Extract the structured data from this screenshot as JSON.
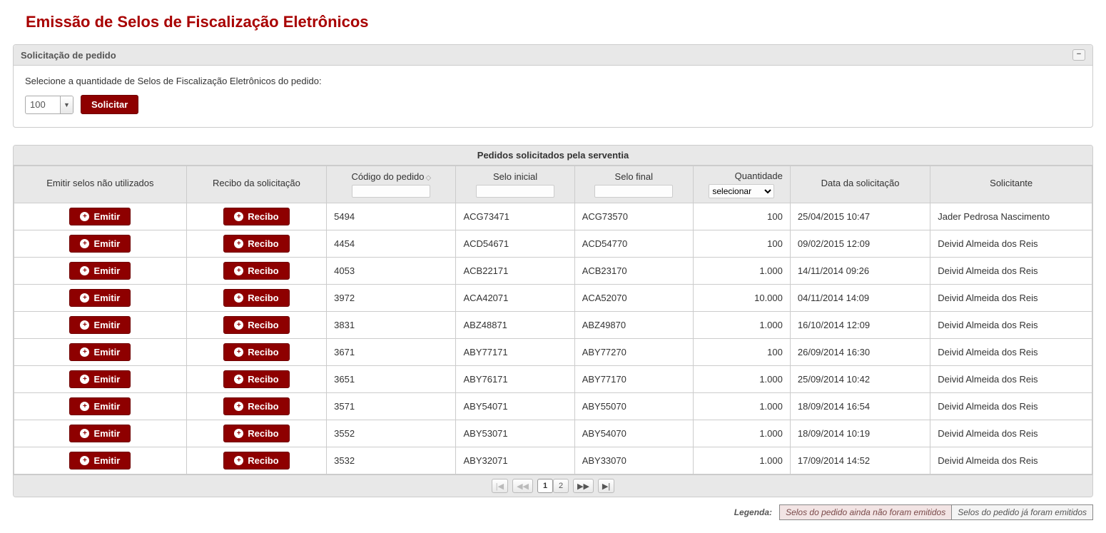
{
  "page": {
    "title": "Emissão de Selos de Fiscalização Eletrônicos"
  },
  "request_panel": {
    "header": "Solicitação de pedido",
    "label": "Selecione a quantidade de Selos de Fiscalização Eletrônicos do pedido:",
    "quantity_value": "100",
    "submit": "Solicitar"
  },
  "grid": {
    "title": "Pedidos solicitados pela serventia",
    "columns": {
      "emitir": "Emitir selos não utilizados",
      "recibo": "Recibo da solicitação",
      "codigo": "Código do pedido",
      "selo_inicial": "Selo inicial",
      "selo_final": "Selo final",
      "quantidade": "Quantidade",
      "quantidade_select": "selecionar",
      "data": "Data da solicitação",
      "solicitante": "Solicitante"
    },
    "buttons": {
      "emitir": "Emitir",
      "recibo": "Recibo"
    },
    "rows": [
      {
        "codigo": "5494",
        "selo_inicial": "ACG73471",
        "selo_final": "ACG73570",
        "quantidade": "100",
        "data": "25/04/2015 10:47",
        "solicitante": "Jader Pedrosa Nascimento"
      },
      {
        "codigo": "4454",
        "selo_inicial": "ACD54671",
        "selo_final": "ACD54770",
        "quantidade": "100",
        "data": "09/02/2015 12:09",
        "solicitante": "Deivid Almeida dos Reis"
      },
      {
        "codigo": "4053",
        "selo_inicial": "ACB22171",
        "selo_final": "ACB23170",
        "quantidade": "1.000",
        "data": "14/11/2014 09:26",
        "solicitante": "Deivid Almeida dos Reis"
      },
      {
        "codigo": "3972",
        "selo_inicial": "ACA42071",
        "selo_final": "ACA52070",
        "quantidade": "10.000",
        "data": "04/11/2014 14:09",
        "solicitante": "Deivid Almeida dos Reis"
      },
      {
        "codigo": "3831",
        "selo_inicial": "ABZ48871",
        "selo_final": "ABZ49870",
        "quantidade": "1.000",
        "data": "16/10/2014 12:09",
        "solicitante": "Deivid Almeida dos Reis"
      },
      {
        "codigo": "3671",
        "selo_inicial": "ABY77171",
        "selo_final": "ABY77270",
        "quantidade": "100",
        "data": "26/09/2014 16:30",
        "solicitante": "Deivid Almeida dos Reis"
      },
      {
        "codigo": "3651",
        "selo_inicial": "ABY76171",
        "selo_final": "ABY77170",
        "quantidade": "1.000",
        "data": "25/09/2014 10:42",
        "solicitante": "Deivid Almeida dos Reis"
      },
      {
        "codigo": "3571",
        "selo_inicial": "ABY54071",
        "selo_final": "ABY55070",
        "quantidade": "1.000",
        "data": "18/09/2014 16:54",
        "solicitante": "Deivid Almeida dos Reis"
      },
      {
        "codigo": "3552",
        "selo_inicial": "ABY53071",
        "selo_final": "ABY54070",
        "quantidade": "1.000",
        "data": "18/09/2014 10:19",
        "solicitante": "Deivid Almeida dos Reis"
      },
      {
        "codigo": "3532",
        "selo_inicial": "ABY32071",
        "selo_final": "ABY33070",
        "quantidade": "1.000",
        "data": "17/09/2014 14:52",
        "solicitante": "Deivid Almeida dos Reis"
      }
    ],
    "paginator": {
      "pages": [
        "1",
        "2"
      ],
      "active": "1"
    }
  },
  "legend": {
    "label": "Legenda:",
    "pending": "Selos do pedido ainda não foram emitidos",
    "done": "Selos do pedido já foram emitidos"
  },
  "colors": {
    "accent": "#8e0000",
    "title": "#a80000",
    "header_bg": "#e8e8e8",
    "border": "#cccccc"
  }
}
